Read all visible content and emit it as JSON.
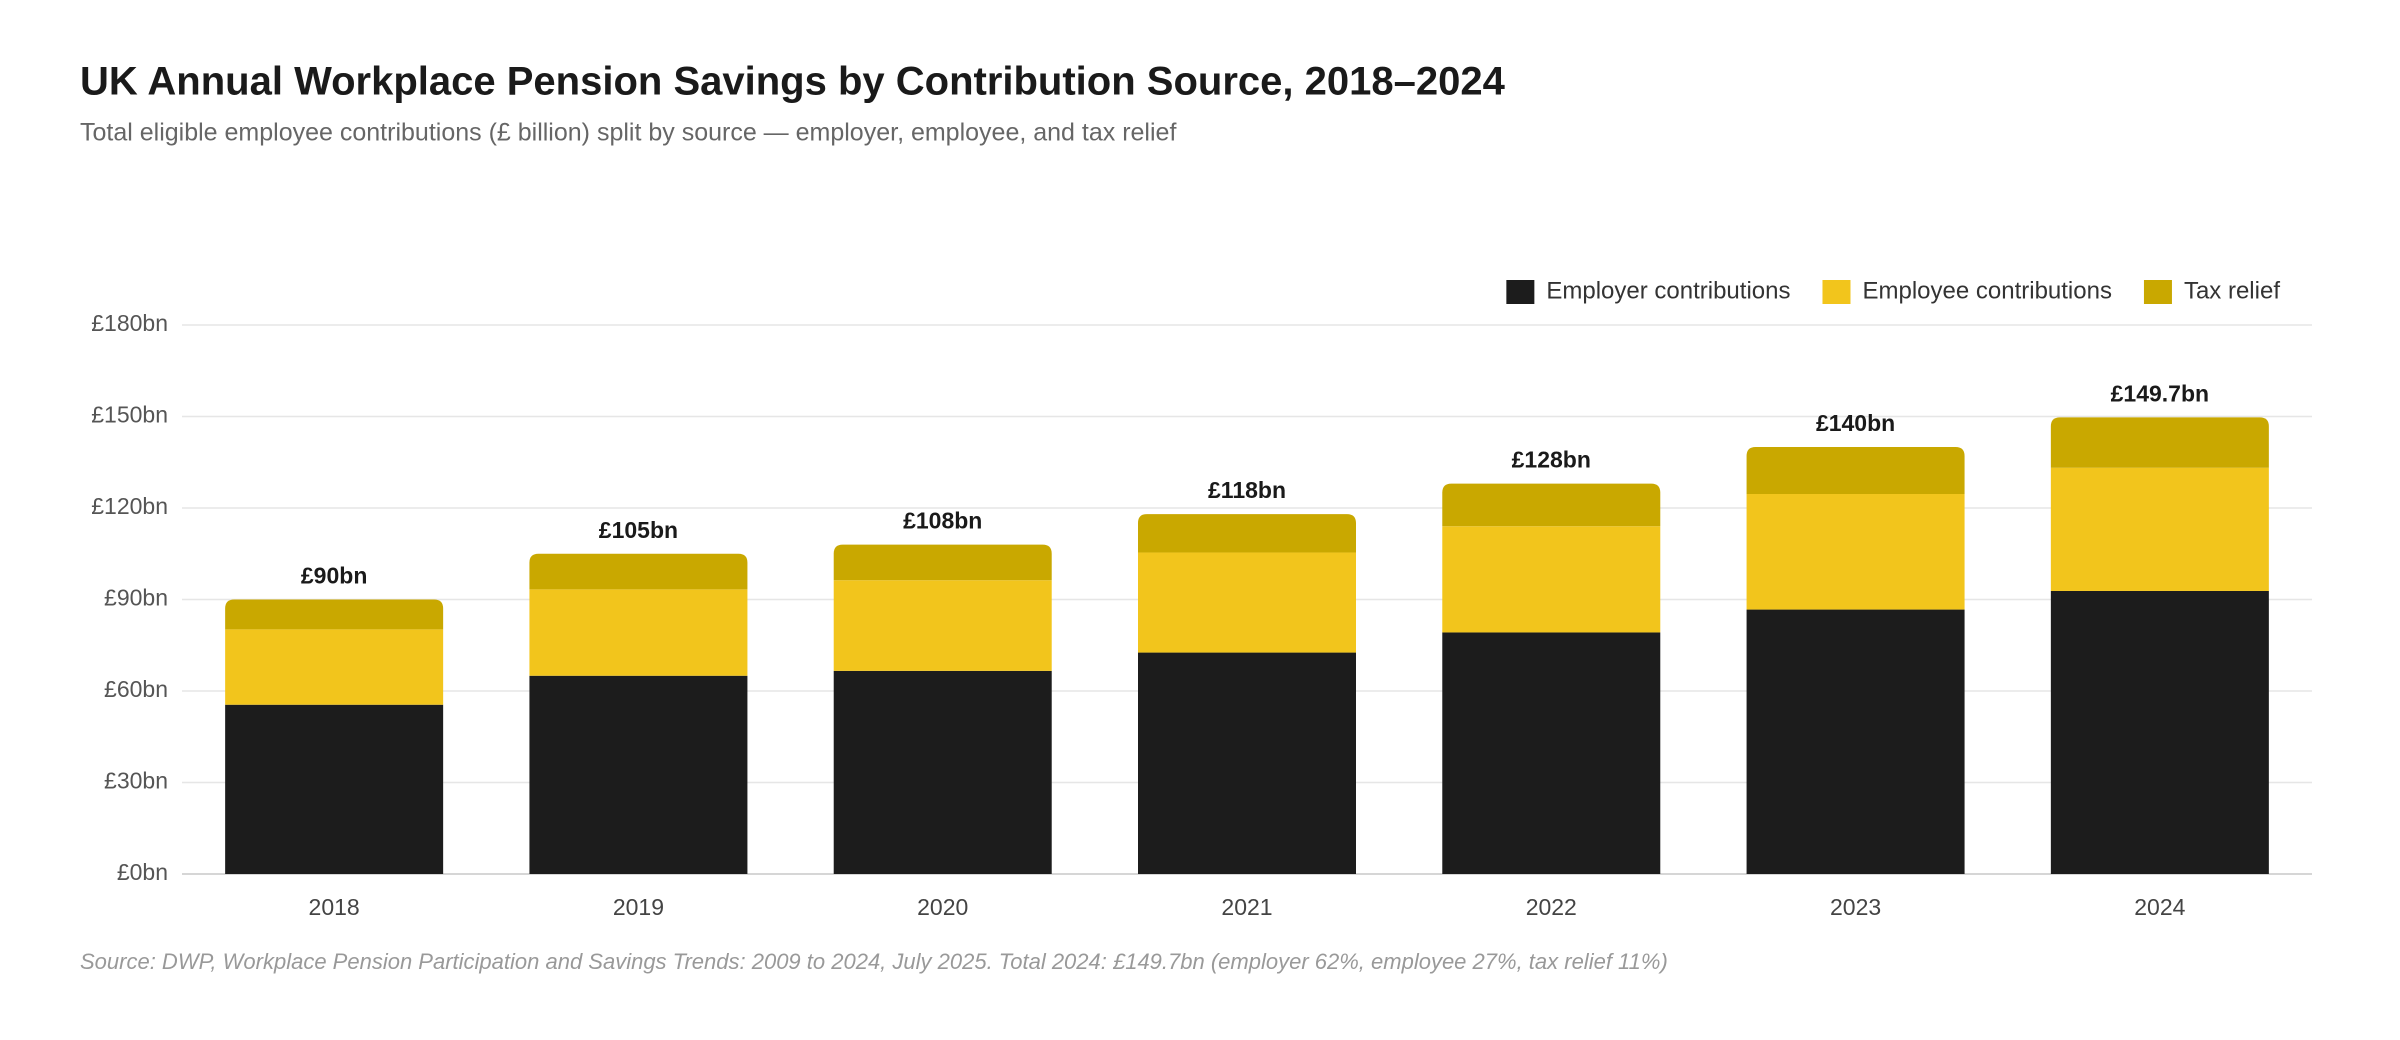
{
  "chart_data": {
    "type": "stacked-bar",
    "title": "UK Annual Workplace Pension Savings by Contribution Source, 2018–2024",
    "subtitle": "Total eligible employee contributions (£ billion) split by source — employer, employee, and tax relief",
    "source": "Source: DWP, Workplace Pension Participation and Savings Trends: 2009 to 2024, July 2025. Total 2024: £149.7bn (employer 62%, employee 27%, tax relief 11%)",
    "categories": [
      "2018",
      "2019",
      "2020",
      "2021",
      "2022",
      "2023",
      "2024"
    ],
    "series": [
      {
        "name": "Employer contributions",
        "color": "#1c1c1c",
        "values": [
          55.5,
          65.0,
          66.6,
          72.6,
          79.2,
          86.7,
          92.8
        ]
      },
      {
        "name": "Employee contributions",
        "color": "#f2c51c",
        "values": [
          24.7,
          28.3,
          29.7,
          32.8,
          34.8,
          37.9,
          40.4
        ]
      },
      {
        "name": "Tax relief",
        "color": "#c9a800",
        "values": [
          9.8,
          11.7,
          11.7,
          12.6,
          14.0,
          15.4,
          16.5
        ]
      }
    ],
    "totals": {
      "values": [
        90,
        105,
        108,
        118,
        128,
        140,
        149.7
      ],
      "value_labels": [
        "£90bn",
        "£105bn",
        "£108bn",
        "£118bn",
        "£128bn",
        "£140bn",
        "£149.7bn"
      ]
    },
    "ylim": [
      0,
      180
    ],
    "yticks": [
      {
        "value": 0,
        "label": "£0bn"
      },
      {
        "value": 30,
        "label": "£30bn"
      },
      {
        "value": 60,
        "label": "£60bn"
      },
      {
        "value": 90,
        "label": "£90bn"
      },
      {
        "value": 120,
        "label": "£120bn"
      },
      {
        "value": 150,
        "label": "£150bn"
      },
      {
        "value": 180,
        "label": "£180bn"
      }
    ],
    "grid": true,
    "legend": "top-right"
  }
}
